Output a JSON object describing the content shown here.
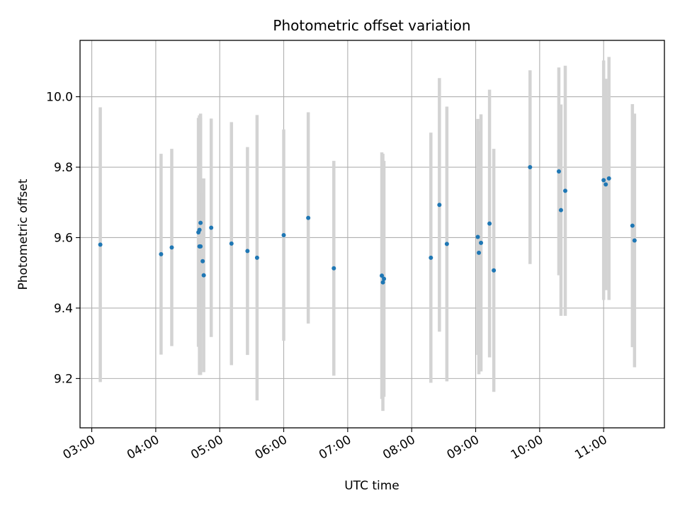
{
  "chart_data": {
    "type": "scatter",
    "title": "Photometric offset variation",
    "xlabel": "UTC time",
    "ylabel": "Photometric offset",
    "x_is_time": true,
    "xlim": [
      "02:49",
      "11:57"
    ],
    "ylim": [
      9.06,
      10.16
    ],
    "xticks": [
      "03:00",
      "04:00",
      "05:00",
      "06:00",
      "07:00",
      "08:00",
      "09:00",
      "10:00",
      "11:00"
    ],
    "yticks": [
      "9.2",
      "9.4",
      "9.6",
      "9.8",
      "10.0"
    ],
    "grid": true,
    "marker_color": "#1f77b4",
    "errorbar_color": "#d3d3d3",
    "points": [
      {
        "x": "03:08",
        "y": 9.58,
        "err": 0.39
      },
      {
        "x": "04:05",
        "y": 9.553,
        "err": 0.285
      },
      {
        "x": "04:15",
        "y": 9.572,
        "err": 0.28
      },
      {
        "x": "04:40",
        "y": 9.615,
        "err": 0.325
      },
      {
        "x": "04:41",
        "y": 9.622,
        "err": 0.325
      },
      {
        "x": "04:41",
        "y": 9.575,
        "err": 0.365
      },
      {
        "x": "04:42",
        "y": 9.575,
        "err": 0.365
      },
      {
        "x": "04:42",
        "y": 9.642,
        "err": 0.31
      },
      {
        "x": "04:44",
        "y": 9.533,
        "err": 0.195
      },
      {
        "x": "04:45",
        "y": 9.493,
        "err": 0.275
      },
      {
        "x": "04:52",
        "y": 9.628,
        "err": 0.31
      },
      {
        "x": "05:11",
        "y": 9.583,
        "err": 0.345
      },
      {
        "x": "05:26",
        "y": 9.562,
        "err": 0.295
      },
      {
        "x": "05:35",
        "y": 9.543,
        "err": 0.405
      },
      {
        "x": "06:00",
        "y": 9.607,
        "err": 0.3
      },
      {
        "x": "06:23",
        "y": 9.656,
        "err": 0.3
      },
      {
        "x": "06:47",
        "y": 9.513,
        "err": 0.305
      },
      {
        "x": "07:32",
        "y": 9.492,
        "err": 0.35
      },
      {
        "x": "07:33",
        "y": 9.473,
        "err": 0.365
      },
      {
        "x": "07:34",
        "y": 9.483,
        "err": 0.335
      },
      {
        "x": "08:18",
        "y": 9.543,
        "err": 0.355
      },
      {
        "x": "08:26",
        "y": 9.693,
        "err": 0.36
      },
      {
        "x": "08:33",
        "y": 9.582,
        "err": 0.39
      },
      {
        "x": "09:02",
        "y": 9.602,
        "err": 0.335
      },
      {
        "x": "09:03",
        "y": 9.557,
        "err": 0.345
      },
      {
        "x": "09:05",
        "y": 9.585,
        "err": 0.365
      },
      {
        "x": "09:13",
        "y": 9.64,
        "err": 0.38
      },
      {
        "x": "09:17",
        "y": 9.507,
        "err": 0.345
      },
      {
        "x": "09:51",
        "y": 9.8,
        "err": 0.275
      },
      {
        "x": "10:18",
        "y": 9.788,
        "err": 0.295
      },
      {
        "x": "10:20",
        "y": 9.678,
        "err": 0.3
      },
      {
        "x": "10:24",
        "y": 9.733,
        "err": 0.355
      },
      {
        "x": "11:00",
        "y": 9.763,
        "err": 0.34
      },
      {
        "x": "11:02",
        "y": 9.751,
        "err": 0.3
      },
      {
        "x": "11:05",
        "y": 9.768,
        "err": 0.345
      },
      {
        "x": "11:27",
        "y": 9.634,
        "err": 0.345
      },
      {
        "x": "11:29",
        "y": 9.592,
        "err": 0.36
      }
    ]
  }
}
